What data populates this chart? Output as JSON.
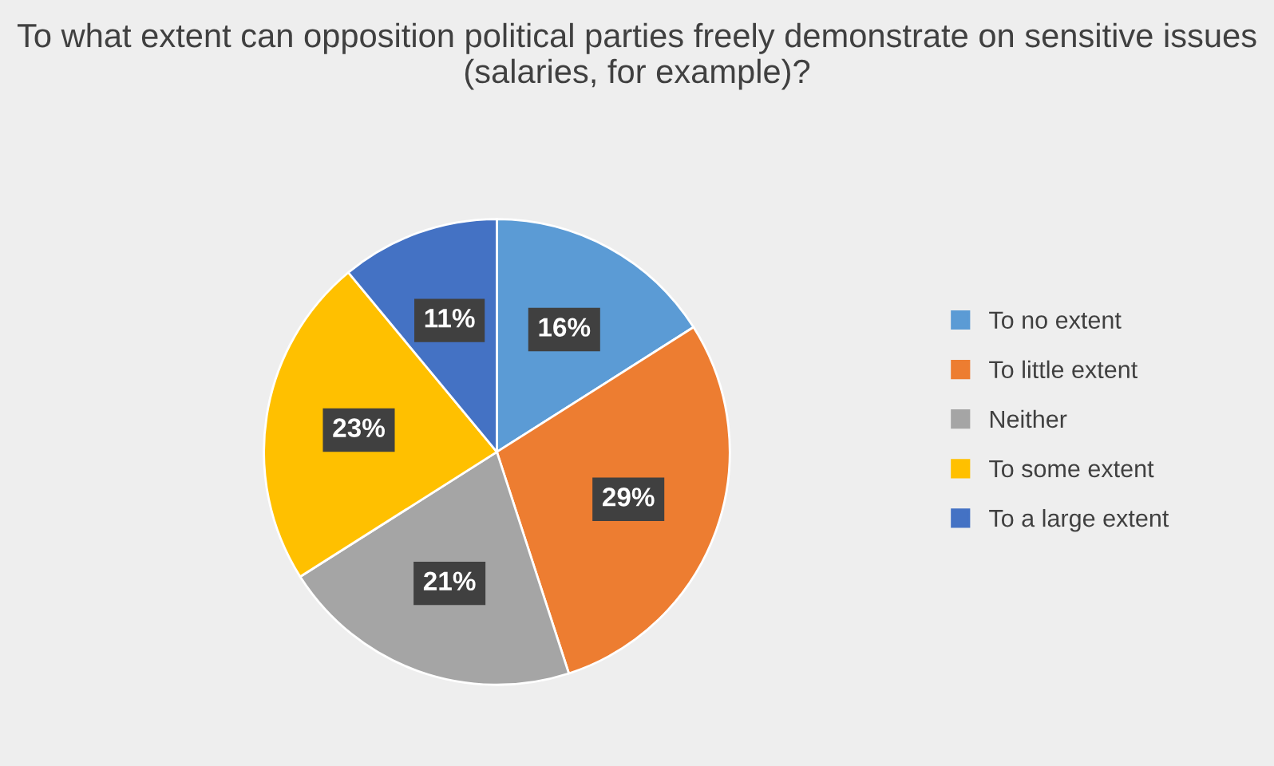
{
  "chart_data": {
    "type": "pie",
    "title": "To what extent can opposition political parties freely demonstrate on sensitive issues (salaries, for example)?",
    "categories": [
      "To no extent",
      "To little extent",
      "Neither",
      "To some extent",
      "To a large extent"
    ],
    "values": [
      16,
      29,
      21,
      23,
      11
    ],
    "colors": [
      "#5b9bd5",
      "#ed7d31",
      "#a5a5a5",
      "#ffc000",
      "#4472c4"
    ],
    "value_labels": [
      "16%",
      "29%",
      "21%",
      "23%",
      "11%"
    ],
    "legend": "right"
  }
}
